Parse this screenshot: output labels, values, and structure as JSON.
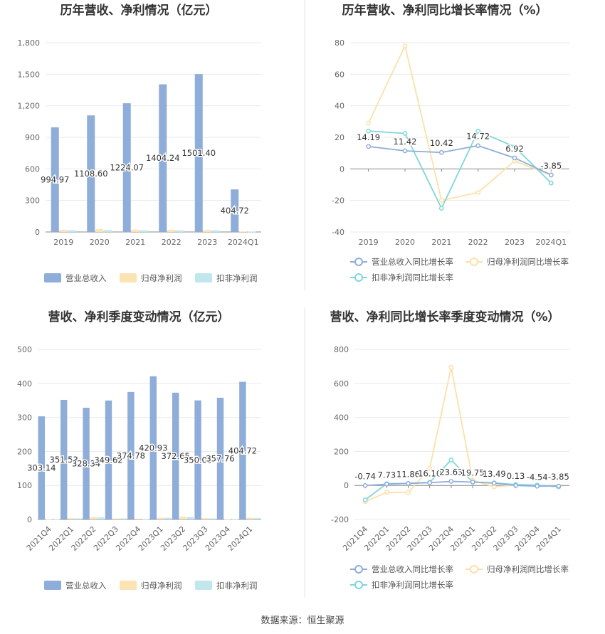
{
  "colors": {
    "revenue": "#8eadd9",
    "net_profit": "#fce3b3",
    "deducted_profit": "#bfe7ec",
    "line_revenue": "#8eadd9",
    "line_net": "#fde0a8",
    "line_deducted": "#7fd6dc"
  },
  "legend": {
    "bars": [
      "营业总收入",
      "归母净利润",
      "扣非净利润"
    ],
    "lines": [
      "营业总收入同比增长率",
      "归母净利润同比增长率",
      "扣非净利润同比增长率"
    ]
  },
  "source": "数据来源：恒生聚源",
  "chart_data": [
    {
      "type": "bar",
      "title": "历年营收、净利情况（亿元）",
      "categories": [
        "2019",
        "2020",
        "2021",
        "2022",
        "2023",
        "2024Q1"
      ],
      "ylim": [
        0,
        1800
      ],
      "yticks": [
        0,
        300,
        600,
        900,
        1200,
        1500,
        1800
      ],
      "ytick_labels": [
        "0",
        "300",
        "600",
        "900",
        "1,200",
        "1,500",
        "1,800"
      ],
      "series": [
        {
          "name": "营业总收入",
          "values": [
            994.97,
            1108.6,
            1224.07,
            1404.24,
            1501.4,
            404.72
          ],
          "labels": [
            "994.97",
            "1108.60",
            "1224.07",
            "1404.24",
            "1501.40",
            "404.72"
          ]
        },
        {
          "name": "归母净利润",
          "values": [
            21,
            27,
            22,
            20,
            19,
            5
          ]
        },
        {
          "name": "扣非净利润",
          "values": [
            17,
            18,
            16,
            16,
            16,
            4
          ]
        }
      ]
    },
    {
      "type": "line",
      "title": "历年营收、净利同比增长率情况（%）",
      "categories": [
        "2019",
        "2020",
        "2021",
        "2022",
        "2023",
        "2024Q1"
      ],
      "ylim": [
        -40,
        80
      ],
      "yticks": [
        -40,
        -20,
        0,
        20,
        40,
        60,
        80
      ],
      "ytick_labels": [
        "-40",
        "-20",
        "0",
        "20",
        "40",
        "60",
        "80"
      ],
      "series": [
        {
          "name": "营业总收入同比增长率",
          "values": [
            14.19,
            11.42,
            10.42,
            14.72,
            6.92,
            -3.85
          ],
          "labels": [
            "14.19",
            "11.42",
            "10.42",
            "14.72",
            "6.92",
            "-3.85"
          ]
        },
        {
          "name": "归母净利润同比增长率",
          "values": [
            29,
            78,
            -20,
            -15,
            5,
            -4
          ]
        },
        {
          "name": "扣非净利润同比增长率",
          "values": [
            24,
            22.5,
            -25,
            24,
            14,
            -9
          ]
        }
      ]
    },
    {
      "type": "bar",
      "title": "营收、净利季度变动情况（亿元）",
      "categories": [
        "2021Q4",
        "2022Q1",
        "2022Q2",
        "2022Q3",
        "2022Q4",
        "2023Q1",
        "2023Q2",
        "2023Q3",
        "2023Q4",
        "2024Q1"
      ],
      "ylim": [
        0,
        500
      ],
      "yticks": [
        0,
        100,
        200,
        300,
        400,
        500
      ],
      "ytick_labels": [
        "0",
        "100",
        "200",
        "300",
        "400",
        "500"
      ],
      "series": [
        {
          "name": "营业总收入",
          "values": [
            303.14,
            351.53,
            328.34,
            349.62,
            374.78,
            420.93,
            372.65,
            350.05,
            357.76,
            404.72
          ],
          "labels": [
            "303.14",
            "351.53",
            "328.34",
            "349.62",
            "374.78",
            "420.93",
            "372.65",
            "350.05",
            "357.76",
            "404.72"
          ]
        },
        {
          "name": "归母净利润",
          "values": [
            1,
            4,
            7,
            3,
            2,
            5,
            8,
            4,
            1,
            5
          ]
        },
        {
          "name": "扣非净利润",
          "values": [
            1,
            3,
            6,
            3,
            1,
            5,
            7,
            3,
            1,
            4
          ]
        }
      ]
    },
    {
      "type": "line",
      "title": "营收、净利同比增长率季度变动情况（%）",
      "categories": [
        "2021Q4",
        "2022Q1",
        "2022Q2",
        "2022Q3",
        "2022Q4",
        "2023Q1",
        "2023Q2",
        "2023Q3",
        "2023Q4",
        "2024Q1"
      ],
      "ylim": [
        -200,
        800
      ],
      "yticks": [
        -200,
        0,
        200,
        400,
        600,
        800
      ],
      "ytick_labels": [
        "-200",
        "0",
        "200",
        "400",
        "600",
        "800"
      ],
      "series": [
        {
          "name": "营业总收入同比增长率",
          "values": [
            -0.74,
            7.73,
            11.86,
            16.1,
            23.63,
            19.75,
            13.49,
            0.13,
            -4.54,
            -3.85
          ],
          "labels": [
            "-0.74",
            "7.73",
            "11.86",
            "16.10",
            "23.63",
            "19.75",
            "13.49",
            "0.13",
            "-4.54",
            "-3.85"
          ]
        },
        {
          "name": "归母净利润同比增长率",
          "values": [
            -95,
            -40,
            -42,
            100,
            695,
            30,
            -8,
            2,
            0,
            -5
          ]
        },
        {
          "name": "扣非净利润同比增长率",
          "values": [
            -85,
            10,
            12,
            18,
            150,
            20,
            15,
            5,
            2,
            -8
          ]
        }
      ]
    }
  ]
}
